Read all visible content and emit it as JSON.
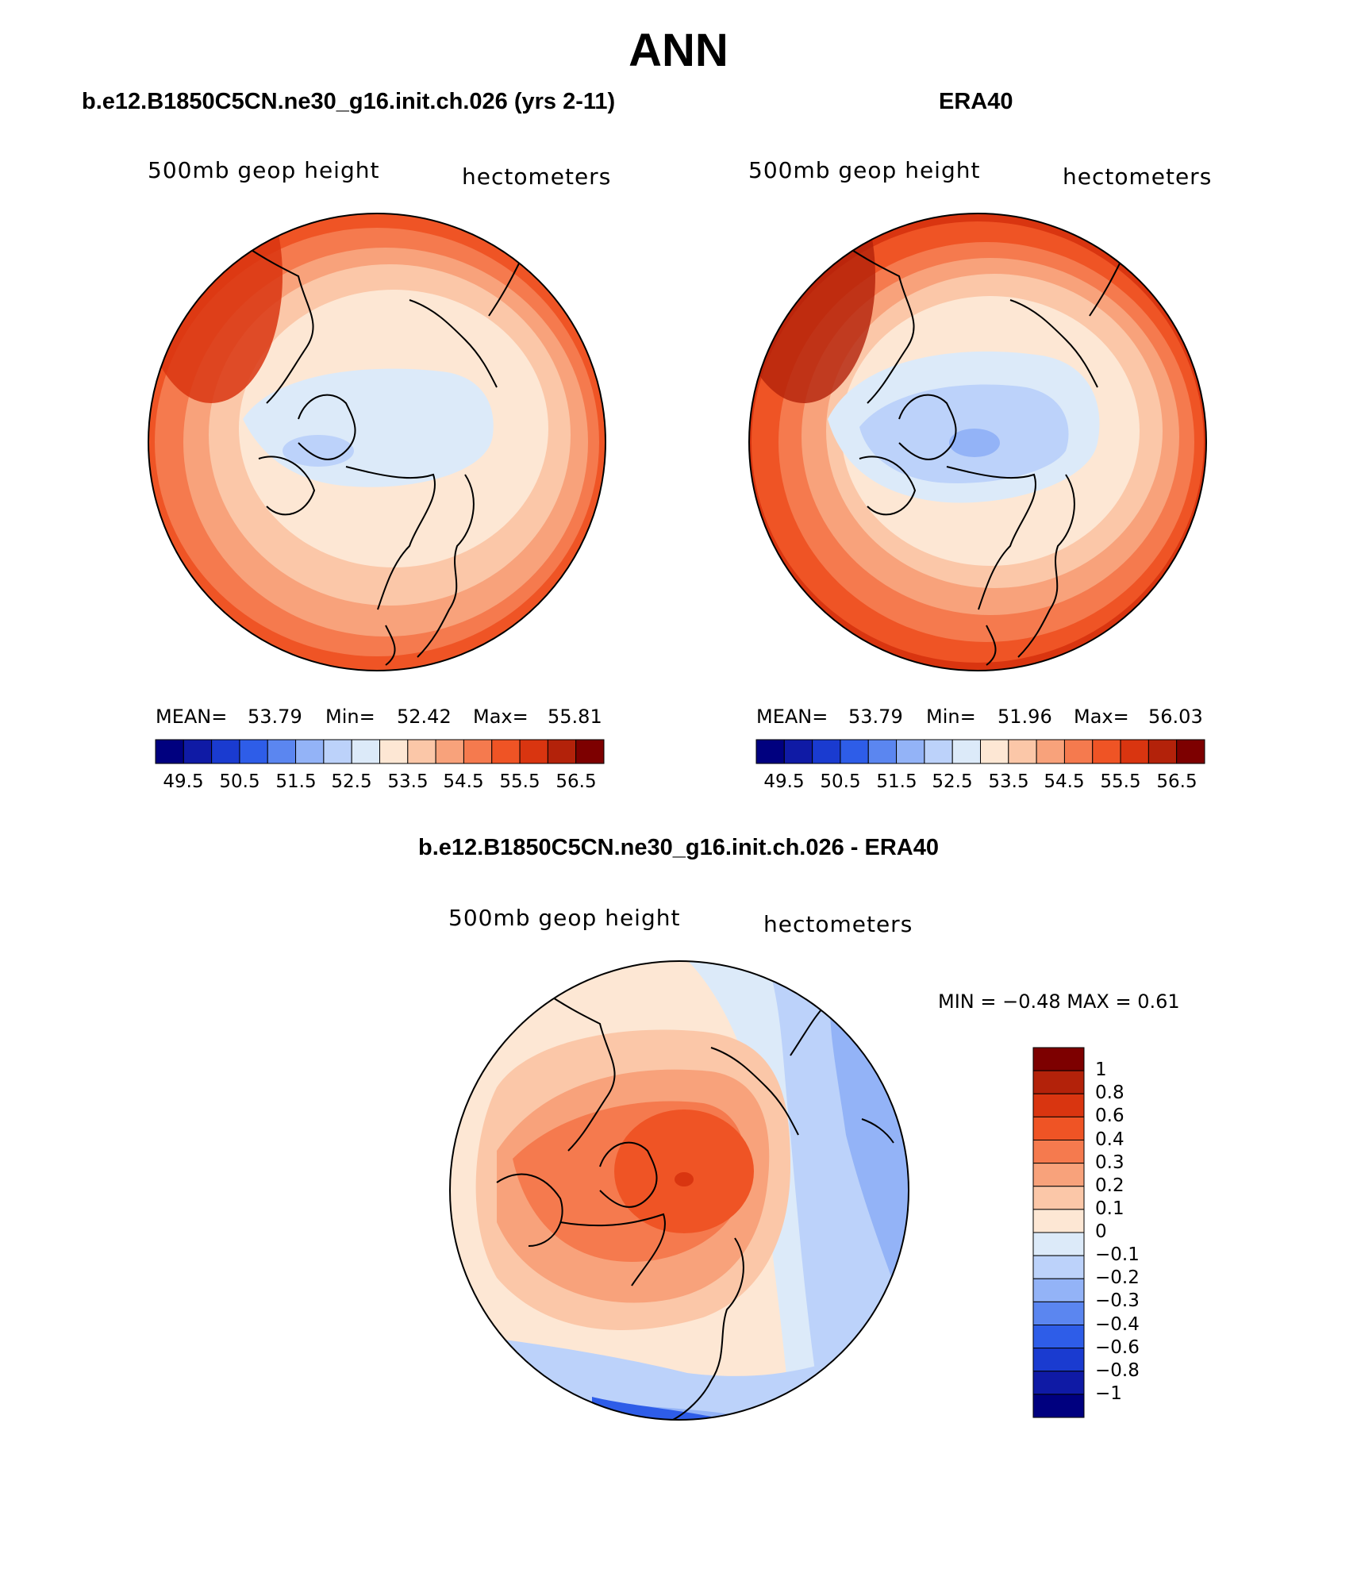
{
  "page": {
    "title": "ANN"
  },
  "panels": [
    {
      "title": "b.e12.B1850C5CN.ne30_g16.init.ch.026 (yrs 2-11)",
      "left_label": "500mb geop height",
      "right_label": "hectometers",
      "stats": {
        "mean_label": "MEAN=",
        "mean": "53.79",
        "min_label": "Min=",
        "min": "52.42",
        "max_label": "Max=",
        "max": "55.81"
      }
    },
    {
      "title": "ERA40",
      "left_label": "500mb geop height",
      "right_label": "hectometers",
      "stats": {
        "mean_label": "MEAN=",
        "mean": "53.79",
        "min_label": "Min=",
        "min": "51.96",
        "max_label": "Max=",
        "max": "56.03"
      }
    },
    {
      "title": "b.e12.B1850C5CN.ne30_g16.init.ch.026 - ERA40",
      "left_label": "500mb geop height",
      "right_label": "hectometers",
      "stats": {
        "text": "MIN =   −0.48 MAX =    0.61"
      }
    }
  ],
  "colorbar_field": {
    "tick_labels": [
      "49.5",
      "50.5",
      "51.5",
      "52.5",
      "53.5",
      "54.5",
      "55.5",
      "56.5"
    ],
    "colors": [
      "#00007f",
      "#0f1aa5",
      "#1a3bd0",
      "#2e5de8",
      "#5b86f0",
      "#93b3f7",
      "#bcd2fa",
      "#dceaf9",
      "#fde7d4",
      "#fbc7a8",
      "#f8a27b",
      "#f57a4e",
      "#ef5425",
      "#d93510",
      "#b3220a",
      "#7d0000"
    ]
  },
  "colorbar_diff": {
    "tick_labels": [
      "1",
      "0.8",
      "0.6",
      "0.4",
      "0.3",
      "0.2",
      "0.1",
      "0",
      "−0.1",
      "−0.2",
      "−0.3",
      "−0.4",
      "−0.6",
      "−0.8",
      "−1"
    ],
    "colors": [
      "#7d0000",
      "#b3220a",
      "#d93510",
      "#ef5425",
      "#f57a4e",
      "#f8a27b",
      "#fbc7a8",
      "#fde7d4",
      "#dceaf9",
      "#bcd2fa",
      "#93b3f7",
      "#5b86f0",
      "#2e5de8",
      "#1a3bd0",
      "#0f1aa5",
      "#00007f"
    ]
  }
}
